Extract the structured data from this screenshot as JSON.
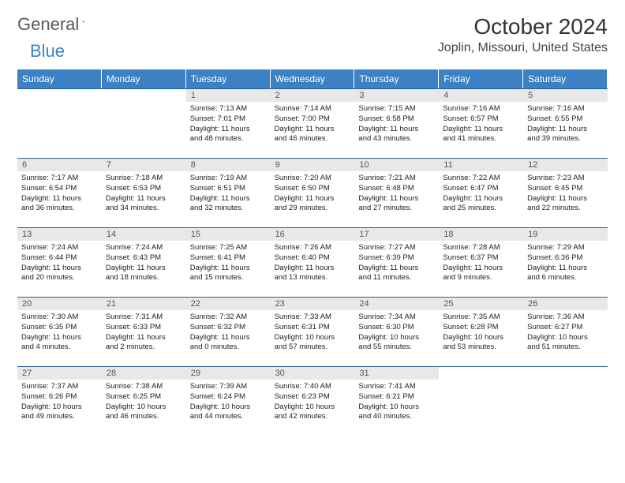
{
  "brand": {
    "part1": "General",
    "part2": "Blue"
  },
  "title": "October 2024",
  "location": "Joplin, Missouri, United States",
  "colors": {
    "header_bg": "#3b81c3",
    "header_text": "#ffffff",
    "daynum_bg": "#e8e8e8",
    "border": "#2c5f8d",
    "logo_gray": "#5a5a5a",
    "logo_blue": "#3b81c3"
  },
  "day_headers": [
    "Sunday",
    "Monday",
    "Tuesday",
    "Wednesday",
    "Thursday",
    "Friday",
    "Saturday"
  ],
  "weeks": [
    [
      null,
      null,
      {
        "n": "1",
        "sr": "Sunrise: 7:13 AM",
        "ss": "Sunset: 7:01 PM",
        "d1": "Daylight: 11 hours",
        "d2": "and 48 minutes."
      },
      {
        "n": "2",
        "sr": "Sunrise: 7:14 AM",
        "ss": "Sunset: 7:00 PM",
        "d1": "Daylight: 11 hours",
        "d2": "and 46 minutes."
      },
      {
        "n": "3",
        "sr": "Sunrise: 7:15 AM",
        "ss": "Sunset: 6:58 PM",
        "d1": "Daylight: 11 hours",
        "d2": "and 43 minutes."
      },
      {
        "n": "4",
        "sr": "Sunrise: 7:16 AM",
        "ss": "Sunset: 6:57 PM",
        "d1": "Daylight: 11 hours",
        "d2": "and 41 minutes."
      },
      {
        "n": "5",
        "sr": "Sunrise: 7:16 AM",
        "ss": "Sunset: 6:55 PM",
        "d1": "Daylight: 11 hours",
        "d2": "and 39 minutes."
      }
    ],
    [
      {
        "n": "6",
        "sr": "Sunrise: 7:17 AM",
        "ss": "Sunset: 6:54 PM",
        "d1": "Daylight: 11 hours",
        "d2": "and 36 minutes."
      },
      {
        "n": "7",
        "sr": "Sunrise: 7:18 AM",
        "ss": "Sunset: 6:53 PM",
        "d1": "Daylight: 11 hours",
        "d2": "and 34 minutes."
      },
      {
        "n": "8",
        "sr": "Sunrise: 7:19 AM",
        "ss": "Sunset: 6:51 PM",
        "d1": "Daylight: 11 hours",
        "d2": "and 32 minutes."
      },
      {
        "n": "9",
        "sr": "Sunrise: 7:20 AM",
        "ss": "Sunset: 6:50 PM",
        "d1": "Daylight: 11 hours",
        "d2": "and 29 minutes."
      },
      {
        "n": "10",
        "sr": "Sunrise: 7:21 AM",
        "ss": "Sunset: 6:48 PM",
        "d1": "Daylight: 11 hours",
        "d2": "and 27 minutes."
      },
      {
        "n": "11",
        "sr": "Sunrise: 7:22 AM",
        "ss": "Sunset: 6:47 PM",
        "d1": "Daylight: 11 hours",
        "d2": "and 25 minutes."
      },
      {
        "n": "12",
        "sr": "Sunrise: 7:23 AM",
        "ss": "Sunset: 6:45 PM",
        "d1": "Daylight: 11 hours",
        "d2": "and 22 minutes."
      }
    ],
    [
      {
        "n": "13",
        "sr": "Sunrise: 7:24 AM",
        "ss": "Sunset: 6:44 PM",
        "d1": "Daylight: 11 hours",
        "d2": "and 20 minutes."
      },
      {
        "n": "14",
        "sr": "Sunrise: 7:24 AM",
        "ss": "Sunset: 6:43 PM",
        "d1": "Daylight: 11 hours",
        "d2": "and 18 minutes."
      },
      {
        "n": "15",
        "sr": "Sunrise: 7:25 AM",
        "ss": "Sunset: 6:41 PM",
        "d1": "Daylight: 11 hours",
        "d2": "and 15 minutes."
      },
      {
        "n": "16",
        "sr": "Sunrise: 7:26 AM",
        "ss": "Sunset: 6:40 PM",
        "d1": "Daylight: 11 hours",
        "d2": "and 13 minutes."
      },
      {
        "n": "17",
        "sr": "Sunrise: 7:27 AM",
        "ss": "Sunset: 6:39 PM",
        "d1": "Daylight: 11 hours",
        "d2": "and 11 minutes."
      },
      {
        "n": "18",
        "sr": "Sunrise: 7:28 AM",
        "ss": "Sunset: 6:37 PM",
        "d1": "Daylight: 11 hours",
        "d2": "and 9 minutes."
      },
      {
        "n": "19",
        "sr": "Sunrise: 7:29 AM",
        "ss": "Sunset: 6:36 PM",
        "d1": "Daylight: 11 hours",
        "d2": "and 6 minutes."
      }
    ],
    [
      {
        "n": "20",
        "sr": "Sunrise: 7:30 AM",
        "ss": "Sunset: 6:35 PM",
        "d1": "Daylight: 11 hours",
        "d2": "and 4 minutes."
      },
      {
        "n": "21",
        "sr": "Sunrise: 7:31 AM",
        "ss": "Sunset: 6:33 PM",
        "d1": "Daylight: 11 hours",
        "d2": "and 2 minutes."
      },
      {
        "n": "22",
        "sr": "Sunrise: 7:32 AM",
        "ss": "Sunset: 6:32 PM",
        "d1": "Daylight: 11 hours",
        "d2": "and 0 minutes."
      },
      {
        "n": "23",
        "sr": "Sunrise: 7:33 AM",
        "ss": "Sunset: 6:31 PM",
        "d1": "Daylight: 10 hours",
        "d2": "and 57 minutes."
      },
      {
        "n": "24",
        "sr": "Sunrise: 7:34 AM",
        "ss": "Sunset: 6:30 PM",
        "d1": "Daylight: 10 hours",
        "d2": "and 55 minutes."
      },
      {
        "n": "25",
        "sr": "Sunrise: 7:35 AM",
        "ss": "Sunset: 6:28 PM",
        "d1": "Daylight: 10 hours",
        "d2": "and 53 minutes."
      },
      {
        "n": "26",
        "sr": "Sunrise: 7:36 AM",
        "ss": "Sunset: 6:27 PM",
        "d1": "Daylight: 10 hours",
        "d2": "and 51 minutes."
      }
    ],
    [
      {
        "n": "27",
        "sr": "Sunrise: 7:37 AM",
        "ss": "Sunset: 6:26 PM",
        "d1": "Daylight: 10 hours",
        "d2": "and 49 minutes."
      },
      {
        "n": "28",
        "sr": "Sunrise: 7:38 AM",
        "ss": "Sunset: 6:25 PM",
        "d1": "Daylight: 10 hours",
        "d2": "and 46 minutes."
      },
      {
        "n": "29",
        "sr": "Sunrise: 7:39 AM",
        "ss": "Sunset: 6:24 PM",
        "d1": "Daylight: 10 hours",
        "d2": "and 44 minutes."
      },
      {
        "n": "30",
        "sr": "Sunrise: 7:40 AM",
        "ss": "Sunset: 6:23 PM",
        "d1": "Daylight: 10 hours",
        "d2": "and 42 minutes."
      },
      {
        "n": "31",
        "sr": "Sunrise: 7:41 AM",
        "ss": "Sunset: 6:21 PM",
        "d1": "Daylight: 10 hours",
        "d2": "and 40 minutes."
      },
      null,
      null
    ]
  ]
}
